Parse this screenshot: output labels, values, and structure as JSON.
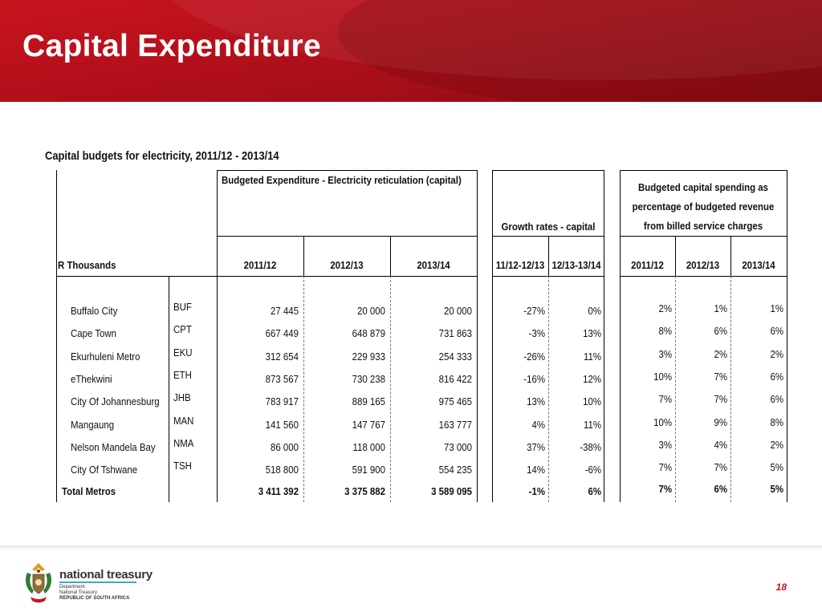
{
  "slide": {
    "title": "Capital Expenditure",
    "page_number": "18"
  },
  "table": {
    "title": "Capital budgets for electricity, 2011/12 - 2013/14",
    "unit_label": "R Thousands",
    "group_budgeted": "Budgeted Expenditure - Electricity reticulation (capital)",
    "group_growth": "Growth rates - capital",
    "group_pct_lines": [
      "Budgeted capital spending as",
      "percentage of budgeted revenue",
      "from billed service charges"
    ],
    "budget_years": [
      "2011/12",
      "2012/13",
      "2013/14"
    ],
    "growth_periods": [
      "11/12-12/13",
      "12/13-13/14"
    ],
    "pct_years": [
      "2011/12",
      "2012/13",
      "2013/14"
    ],
    "rows": [
      {
        "name": "Buffalo City",
        "code": "BUF",
        "b1": "27 445",
        "b2": "20 000",
        "b3": "20 000",
        "g1": "-27%",
        "g2": "0%",
        "p1": "2%",
        "p2": "1%",
        "p3": "1%"
      },
      {
        "name": "Cape Town",
        "code": "CPT",
        "b1": "667 449",
        "b2": "648 879",
        "b3": "731 863",
        "g1": "-3%",
        "g2": "13%",
        "p1": "8%",
        "p2": "6%",
        "p3": "6%"
      },
      {
        "name": "Ekurhuleni Metro",
        "code": "EKU",
        "b1": "312 654",
        "b2": "229 933",
        "b3": "254 333",
        "g1": "-26%",
        "g2": "11%",
        "p1": "3%",
        "p2": "2%",
        "p3": "2%"
      },
      {
        "name": "eThekwini",
        "code": "ETH",
        "b1": "873 567",
        "b2": "730 238",
        "b3": "816 422",
        "g1": "-16%",
        "g2": "12%",
        "p1": "10%",
        "p2": "7%",
        "p3": "6%"
      },
      {
        "name": "City Of Johannesburg",
        "code": "JHB",
        "b1": "783 917",
        "b2": "889 165",
        "b3": "975 465",
        "g1": "13%",
        "g2": "10%",
        "p1": "7%",
        "p2": "7%",
        "p3": "6%"
      },
      {
        "name": "Mangaung",
        "code": "MAN",
        "b1": "141 560",
        "b2": "147 767",
        "b3": "163 777",
        "g1": "4%",
        "g2": "11%",
        "p1": "10%",
        "p2": "9%",
        "p3": "8%"
      },
      {
        "name": "Nelson Mandela Bay",
        "code": "NMA",
        "b1": "86 000",
        "b2": "118 000",
        "b3": "73 000",
        "g1": "37%",
        "g2": "-38%",
        "p1": "3%",
        "p2": "4%",
        "p3": "2%"
      },
      {
        "name": "City Of Tshwane",
        "code": "TSH",
        "b1": "518 800",
        "b2": "591 900",
        "b3": "554 235",
        "g1": "14%",
        "g2": "-6%",
        "p1": "7%",
        "p2": "7%",
        "p3": "5%"
      }
    ],
    "total": {
      "name": "Total Metros",
      "code": "",
      "b1": "3 411 392",
      "b2": "3 375 882",
      "b3": "3 589 095",
      "g1": "-1%",
      "g2": "6%",
      "p1": "7%",
      "p2": "6%",
      "p3": "5%"
    }
  },
  "footer": {
    "logo_name": "national treasury",
    "logo_lines": [
      "Department:",
      "National Treasury",
      "REPUBLIC OF SOUTH AFRICA"
    ]
  },
  "colors": {
    "header_red": "#c8141f",
    "logo_rule": "#3aa8c6"
  }
}
